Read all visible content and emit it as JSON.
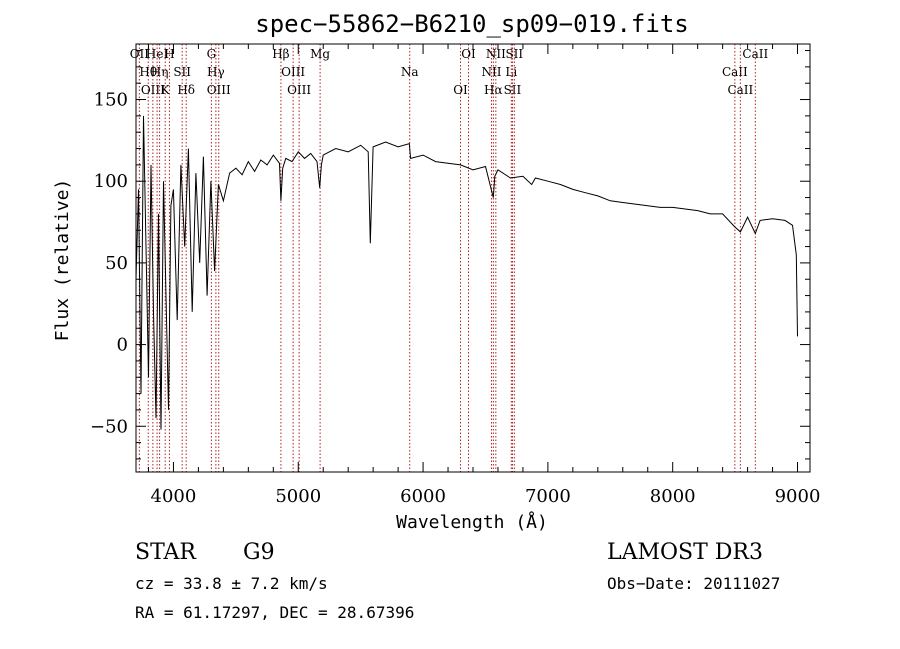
{
  "chart_data": {
    "type": "line",
    "title": "spec−55862−B6210_sp09−019.fits",
    "xlabel": "Wavelength (Å)",
    "ylabel": "Flux (relative)",
    "xlim": [
      3700,
      9100
    ],
    "ylim": [
      -78,
      184
    ],
    "xticks": [
      4000,
      5000,
      6000,
      7000,
      8000,
      9000
    ],
    "yticks": [
      -50,
      0,
      50,
      100,
      150
    ],
    "grid": false,
    "series": [
      {
        "name": "spectrum",
        "x": [
          3700,
          3720,
          3740,
          3760,
          3780,
          3800,
          3820,
          3840,
          3860,
          3880,
          3900,
          3920,
          3940,
          3960,
          3980,
          4000,
          4030,
          4060,
          4090,
          4120,
          4150,
          4180,
          4210,
          4240,
          4270,
          4300,
          4330,
          4360,
          4400,
          4450,
          4500,
          4550,
          4600,
          4650,
          4700,
          4750,
          4800,
          4850,
          4861,
          4875,
          4900,
          4950,
          5000,
          5050,
          5100,
          5150,
          5172,
          5185,
          5200,
          5300,
          5400,
          5500,
          5560,
          5577,
          5600,
          5700,
          5800,
          5890,
          5900,
          6000,
          6100,
          6200,
          6300,
          6400,
          6500,
          6563,
          6575,
          6600,
          6700,
          6800,
          6870,
          6900,
          7000,
          7100,
          7200,
          7300,
          7400,
          7500,
          7600,
          7700,
          7800,
          7900,
          8000,
          8100,
          8200,
          8300,
          8400,
          8498,
          8542,
          8600,
          8662,
          8700,
          8800,
          8900,
          8960,
          8990,
          9000
        ],
        "y": [
          40,
          95,
          -30,
          140,
          60,
          -20,
          110,
          20,
          -45,
          80,
          -52,
          100,
          30,
          -40,
          85,
          95,
          15,
          110,
          60,
          120,
          20,
          105,
          50,
          115,
          30,
          100,
          45,
          98,
          88,
          105,
          108,
          104,
          112,
          106,
          113,
          110,
          116,
          111,
          88,
          108,
          114,
          112,
          118,
          114,
          117,
          112,
          96,
          110,
          116,
          120,
          118,
          122,
          118,
          62,
          121,
          124,
          121,
          123,
          114,
          116,
          112,
          111,
          110,
          107,
          109,
          90,
          103,
          107,
          102,
          103,
          98,
          102,
          100,
          98,
          95,
          93,
          91,
          88,
          87,
          86,
          85,
          84,
          84,
          83,
          82,
          80,
          80,
          72,
          69,
          78,
          68,
          76,
          77,
          76,
          73,
          55,
          5
        ]
      }
    ],
    "lines": [
      {
        "label": "OII",
        "x": 3727
      },
      {
        "label": "Hθ",
        "x": 3798
      },
      {
        "label": "OIII",
        "x": 3835
      },
      {
        "label": "HeI",
        "x": 3869
      },
      {
        "label": "Hη",
        "x": 3889
      },
      {
        "label": "K",
        "x": 3934
      },
      {
        "label": "H",
        "x": 3968
      },
      {
        "label": "SII",
        "x": 4070
      },
      {
        "label": "Hδ",
        "x": 4102
      },
      {
        "label": "G",
        "x": 4304
      },
      {
        "label": "Hγ",
        "x": 4340
      },
      {
        "label": "OIII",
        "x": 4363
      },
      {
        "label": "Hβ",
        "x": 4861
      },
      {
        "label": "OIII",
        "x": 4959
      },
      {
        "label": "OIII",
        "x": 5007
      },
      {
        "label": "Mg",
        "x": 5175
      },
      {
        "label": "Na",
        "x": 5893
      },
      {
        "label": "OI",
        "x": 6300
      },
      {
        "label": "OI",
        "x": 6364
      },
      {
        "label": "NII",
        "x": 6548
      },
      {
        "label": "Hα",
        "x": 6563
      },
      {
        "label": "NII",
        "x": 6583
      },
      {
        "label": "Li",
        "x": 6707
      },
      {
        "label": "SII",
        "x": 6716
      },
      {
        "label": "SII",
        "x": 6731
      },
      {
        "label": "CaII",
        "x": 8498
      },
      {
        "label": "CaII",
        "x": 8542
      },
      {
        "label": "CaII",
        "x": 8662
      }
    ]
  },
  "info": {
    "object_type": "STAR",
    "subclass": "G9",
    "cz": "cz = 33.8 ± 7.2 km/s",
    "coords": "RA =  61.17297, DEC =  28.67396",
    "survey": "LAMOST DR3",
    "obs_date": "Obs−Date: 20111027"
  },
  "colors": {
    "spectrum": "#000000",
    "lines": "#b22222",
    "axes": "#000000"
  }
}
